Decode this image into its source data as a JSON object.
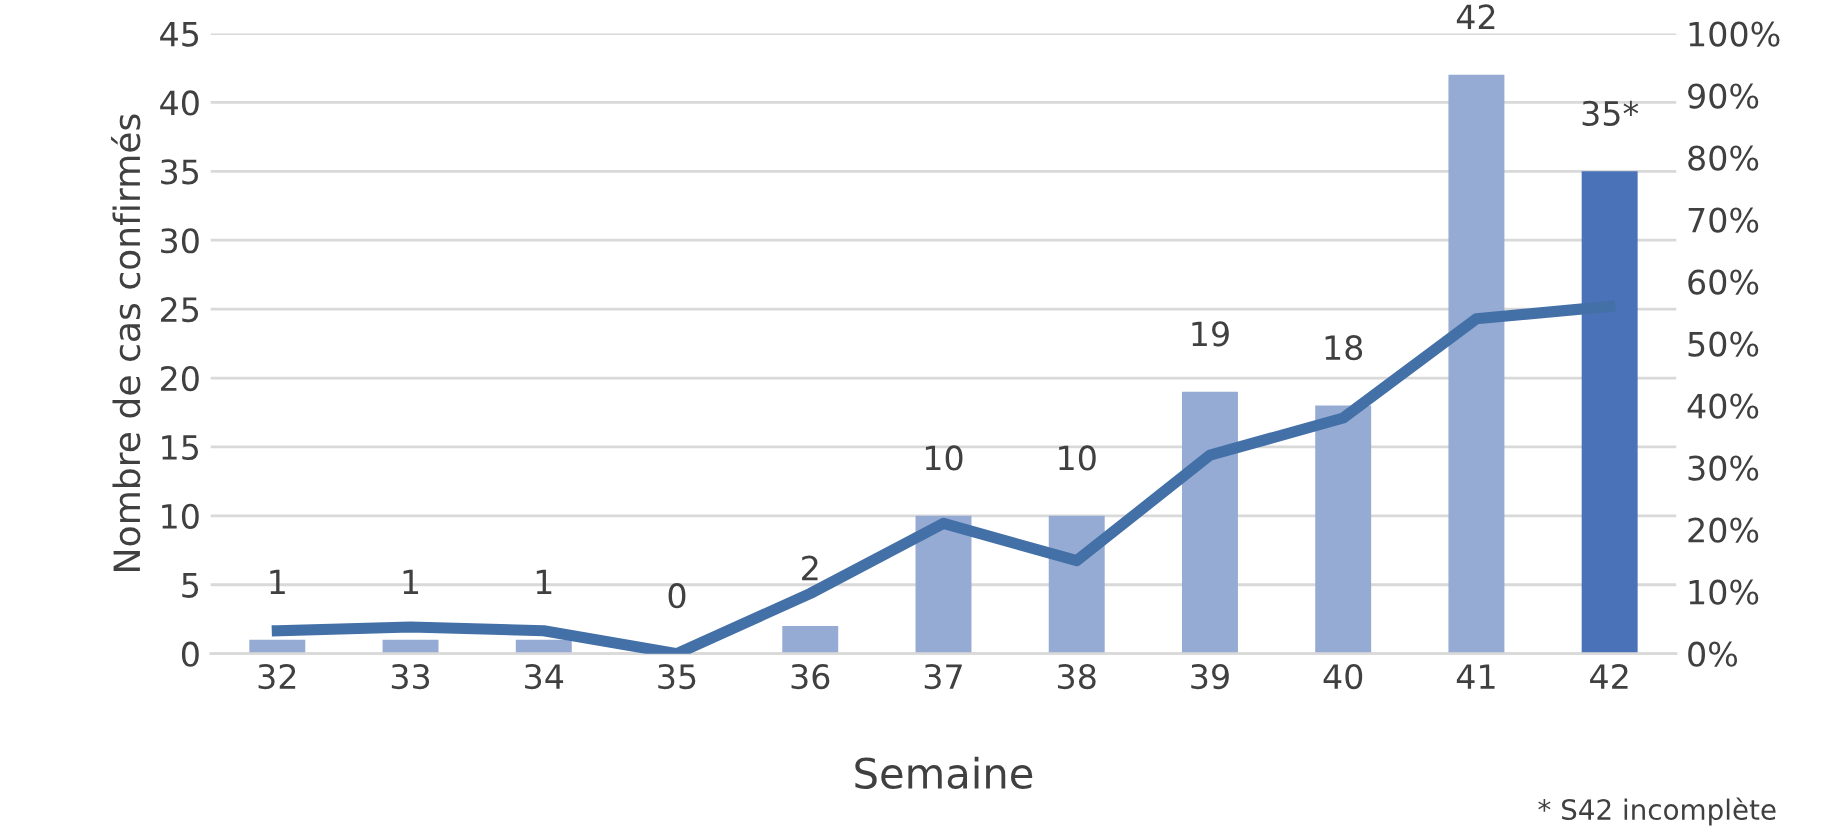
{
  "chart_data": {
    "type": "bar",
    "xlabel": "Semaine",
    "ylabel": "Nombre de cas confirmés",
    "categories": [
      "32",
      "33",
      "34",
      "35",
      "36",
      "37",
      "38",
      "39",
      "40",
      "41",
      "42"
    ],
    "series": [
      {
        "color": "#95abd3",
        "colors": [
          "#95abd3",
          "#95abd3",
          "#95abd3",
          "#95abd3",
          "#95abd3",
          "#95abd3",
          "#95abd3",
          "#95abd3",
          "#95abd3",
          "#95abd3",
          "#4a72b8"
        ],
        "values": [
          1,
          1,
          1,
          0,
          2,
          10,
          10,
          19,
          18,
          42,
          35
        ],
        "value_labels": [
          "1",
          "1",
          "1",
          "0",
          "2",
          "10",
          "10",
          "19",
          "18",
          "42",
          "35*"
        ]
      },
      {
        "type": "line",
        "axis": "y2",
        "color": "#4470a8",
        "values": [
          3.7,
          4.3,
          3.7,
          0,
          9.7,
          21,
          15,
          32,
          38,
          54,
          56
        ]
      }
    ],
    "ylim": [
      0,
      45
    ],
    "yticks": [
      0,
      5,
      10,
      15,
      20,
      25,
      30,
      35,
      40,
      45
    ],
    "y2lim": [
      0,
      100
    ],
    "y2ticks": [
      {
        "value": 0,
        "label": "0%"
      },
      {
        "value": 10,
        "label": "10%"
      },
      {
        "value": 20,
        "label": "20%"
      },
      {
        "value": 30,
        "label": "30%"
      },
      {
        "value": 40,
        "label": "40%"
      },
      {
        "value": 50,
        "label": "50%"
      },
      {
        "value": 60,
        "label": "60%"
      },
      {
        "value": 70,
        "label": "70%"
      },
      {
        "value": 80,
        "label": "80%"
      },
      {
        "value": 90,
        "label": "90%"
      },
      {
        "value": 100,
        "label": "100%"
      }
    ],
    "grid": "y",
    "marker": "none",
    "line_style": "solid",
    "annotations": [
      "* S42 incomplète"
    ]
  }
}
